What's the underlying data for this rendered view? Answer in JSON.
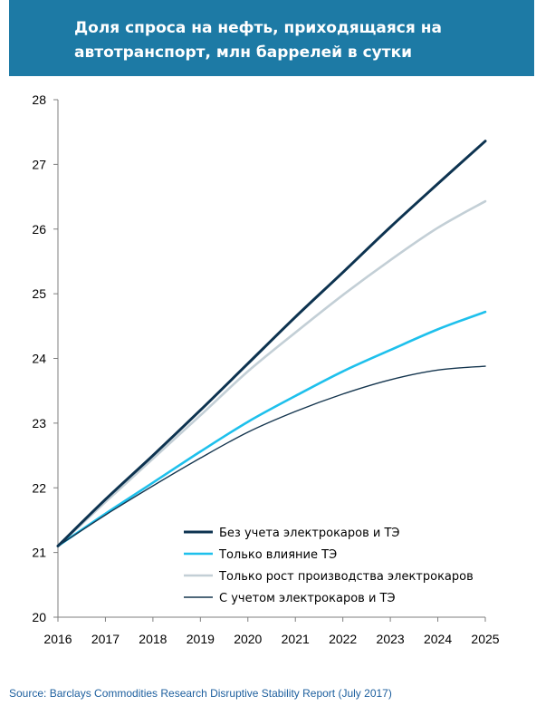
{
  "title": "Доля спроса на нефть, приходящаяся на автотранспорт, млн баррелей в сутки",
  "source": "Source: Barclays Commodities Research Disruptive Stability Report (July 2017)",
  "chart_data": {
    "type": "line",
    "title": "Доля спроса на нефть, приходящаяся на автотранспорт, млн баррелей в сутки",
    "xlabel": "",
    "ylabel": "",
    "x": [
      2016,
      2017,
      2018,
      2019,
      2020,
      2021,
      2022,
      2023,
      2024,
      2025
    ],
    "ylim": [
      20,
      28
    ],
    "yticks": [
      20,
      21,
      22,
      23,
      24,
      25,
      26,
      27,
      28
    ],
    "grid": false,
    "legend_position": "bottom-right",
    "series": [
      {
        "name": "Без учета электрокаров и ТЭ",
        "color": "#0d3350",
        "width": 3,
        "values": [
          21.1,
          21.82,
          22.5,
          23.2,
          23.92,
          24.64,
          25.33,
          26.03,
          26.7,
          27.36
        ]
      },
      {
        "name": "Только влияние ТЭ",
        "color": "#1ec0ec",
        "width": 2.6,
        "values": [
          21.1,
          21.6,
          22.08,
          22.56,
          23.02,
          23.42,
          23.8,
          24.13,
          24.45,
          24.72
        ]
      },
      {
        "name": "Только рост производства электрокаров",
        "color": "#c3cfd6",
        "width": 2.6,
        "values": [
          21.1,
          21.78,
          22.45,
          23.12,
          23.8,
          24.4,
          24.98,
          25.52,
          26.02,
          26.43
        ]
      },
      {
        "name": "С учетом электрокаров и ТЭ",
        "color": "#15364f",
        "width": 1.4,
        "values": [
          21.1,
          21.58,
          22.03,
          22.46,
          22.86,
          23.18,
          23.45,
          23.67,
          23.82,
          23.88
        ]
      }
    ]
  }
}
